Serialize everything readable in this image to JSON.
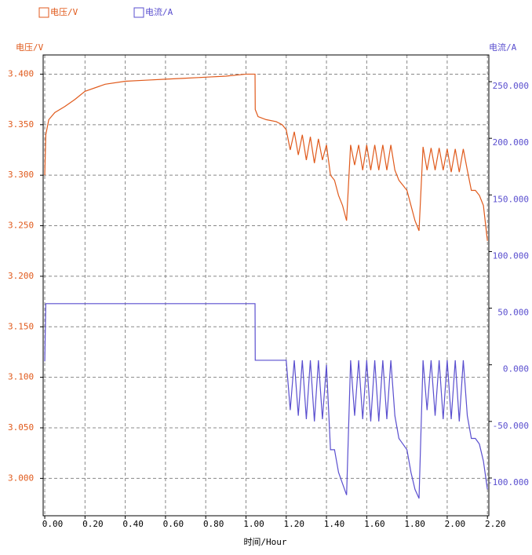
{
  "chart_data": {
    "type": "line",
    "x_label": "时间/Hour",
    "y_label": "电压/V",
    "y2_label": "电流/A",
    "xlim": [
      -0.008,
      2.207
    ],
    "xticks": [
      {
        "value": 0,
        "label": "0.00"
      },
      {
        "value": 0.2,
        "label": "0.20"
      },
      {
        "value": 0.4,
        "label": "0.40"
      },
      {
        "value": 0.6,
        "label": "0.60"
      },
      {
        "value": 0.8,
        "label": "0.80"
      },
      {
        "value": 1,
        "label": "1.00"
      },
      {
        "value": 1.2,
        "label": "1.20"
      },
      {
        "value": 1.4,
        "label": "1.40"
      },
      {
        "value": 1.6,
        "label": "1.60"
      },
      {
        "value": 1.8,
        "label": "1.80"
      },
      {
        "value": 2,
        "label": "2.00"
      },
      {
        "value": 2.2,
        "label": "2.20"
      }
    ],
    "ylim": [
      2.963,
      3.419
    ],
    "yticks": [
      {
        "value": 3.0,
        "label": "3.000"
      },
      {
        "value": 3.05,
        "label": "3.050"
      },
      {
        "value": 3.1,
        "label": "3.100"
      },
      {
        "value": 3.15,
        "label": "3.150"
      },
      {
        "value": 3.2,
        "label": "3.200"
      },
      {
        "value": 3.25,
        "label": "3.250"
      },
      {
        "value": 3.3,
        "label": "3.300"
      },
      {
        "value": 3.35,
        "label": "3.350"
      },
      {
        "value": 3.4,
        "label": "3.400"
      }
    ],
    "y2lim": [
      -133.3,
      273.6
    ],
    "y2ticks": [
      {
        "value": -100,
        "label": "-100.000"
      },
      {
        "value": -50,
        "label": "-50.000"
      },
      {
        "value": 0,
        "label": "0.000"
      },
      {
        "value": 50,
        "label": "50.000"
      },
      {
        "value": 100,
        "label": "100.000"
      },
      {
        "value": 150,
        "label": "150.000"
      },
      {
        "value": 200,
        "label": "200.000"
      },
      {
        "value": 250,
        "label": "250.000"
      }
    ],
    "grid": true,
    "x": [
      0,
      0.005,
      0.02,
      0.05,
      0.1,
      0.15,
      0.2,
      0.3,
      0.4,
      0.5,
      0.6,
      0.7,
      0.8,
      0.9,
      1.0,
      1.04,
      1.045,
      1.046,
      1.06,
      1.1,
      1.15,
      1.18,
      1.2,
      1.22,
      1.24,
      1.26,
      1.28,
      1.3,
      1.32,
      1.34,
      1.36,
      1.38,
      1.4,
      1.42,
      1.44,
      1.46,
      1.48,
      1.5,
      1.52,
      1.54,
      1.56,
      1.58,
      1.6,
      1.62,
      1.64,
      1.66,
      1.68,
      1.7,
      1.72,
      1.74,
      1.76,
      1.78,
      1.8,
      1.82,
      1.84,
      1.86,
      1.88,
      1.9,
      1.92,
      1.94,
      1.96,
      1.98,
      2.0,
      2.02,
      2.04,
      2.06,
      2.08,
      2.1,
      2.12,
      2.14,
      2.16,
      2.18,
      2.2
    ],
    "series": [
      {
        "name": "电压/V",
        "color": "#e05a1c",
        "axis": "y",
        "values": [
          3.3,
          3.34,
          3.355,
          3.362,
          3.368,
          3.375,
          3.383,
          3.39,
          3.393,
          3.394,
          3.395,
          3.396,
          3.397,
          3.398,
          3.4,
          3.4,
          3.4,
          3.365,
          3.358,
          3.355,
          3.353,
          3.35,
          3.345,
          3.325,
          3.343,
          3.32,
          3.34,
          3.315,
          3.338,
          3.312,
          3.336,
          3.315,
          3.33,
          3.3,
          3.295,
          3.28,
          3.27,
          3.255,
          3.33,
          3.31,
          3.33,
          3.305,
          3.33,
          3.305,
          3.33,
          3.305,
          3.33,
          3.305,
          3.33,
          3.305,
          3.295,
          3.29,
          3.285,
          3.27,
          3.255,
          3.245,
          3.328,
          3.305,
          3.327,
          3.305,
          3.327,
          3.305,
          3.326,
          3.303,
          3.326,
          3.303,
          3.326,
          3.305,
          3.285,
          3.285,
          3.28,
          3.27,
          3.235
        ]
      },
      {
        "name": "电流/A",
        "color": "#5a4fcf",
        "axis": "y2",
        "values": [
          3,
          54,
          54,
          54,
          54,
          54,
          54,
          54,
          54,
          54,
          54,
          54,
          54,
          54,
          54,
          54,
          54,
          4,
          4,
          4,
          4,
          4,
          4,
          -40,
          4,
          -45,
          4,
          -48,
          4,
          -50,
          4,
          -48,
          0,
          -75,
          -75,
          -95,
          -105,
          -115,
          4,
          -45,
          4,
          -48,
          4,
          -50,
          4,
          -50,
          4,
          -48,
          4,
          -45,
          -65,
          -70,
          -75,
          -95,
          -110,
          -118,
          4,
          -40,
          4,
          -45,
          4,
          -48,
          4,
          -48,
          4,
          -50,
          4,
          -45,
          -65,
          -65,
          -70,
          -85,
          -110
        ]
      }
    ]
  }
}
